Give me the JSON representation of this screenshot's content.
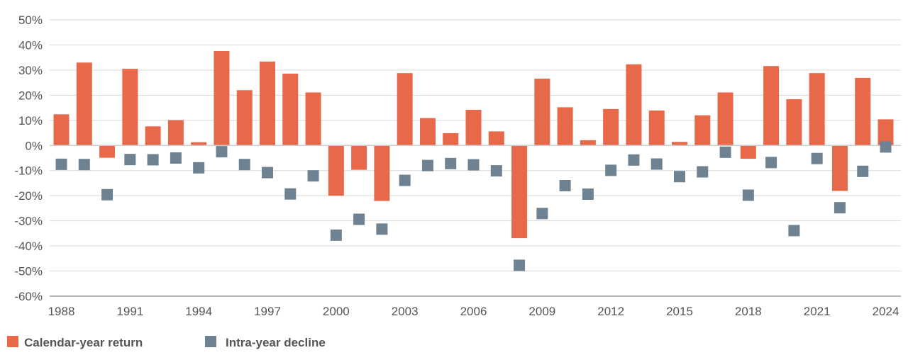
{
  "chart_data": {
    "type": "bar",
    "title": "",
    "xlabel": "",
    "ylabel": "",
    "ylim": [
      -60,
      50
    ],
    "y_ticks": [
      "50%",
      "40%",
      "30%",
      "20%",
      "10%",
      "0%",
      "-10%",
      "-20%",
      "-30%",
      "-40%",
      "-50%",
      "-60%"
    ],
    "x_tick_labels": [
      "1988",
      "1991",
      "1994",
      "1997",
      "2000",
      "2003",
      "2006",
      "2009",
      "2012",
      "2015",
      "2018",
      "2021",
      "2024"
    ],
    "grid": true,
    "legend_position": "bottom-left",
    "years": [
      1988,
      1989,
      1990,
      1991,
      1992,
      1993,
      1994,
      1995,
      1996,
      1997,
      1998,
      1999,
      2000,
      2001,
      2002,
      2003,
      2004,
      2005,
      2006,
      2007,
      2008,
      2009,
      2010,
      2011,
      2012,
      2013,
      2014,
      2015,
      2016,
      2017,
      2018,
      2019,
      2020,
      2021,
      2022,
      2023,
      2024
    ],
    "series": [
      {
        "name": "Calendar-year return",
        "kind": "bar",
        "color": "#E8694A",
        "values": [
          12.4,
          33,
          -4.9,
          30.5,
          7.6,
          10.1,
          1.3,
          37.6,
          22,
          33.4,
          28.6,
          21.1,
          -20,
          -9.7,
          -22.1,
          28.8,
          10.9,
          4.9,
          14.2,
          5.6,
          -36.9,
          26.6,
          15.2,
          2.1,
          14.5,
          32.3,
          13.9,
          1.4,
          12,
          21.1,
          -5.3,
          31.6,
          18.4,
          28.8,
          -18.1,
          26.9,
          10.4
        ]
      },
      {
        "name": "Intra-year decline",
        "kind": "marker",
        "color": "#6F8291",
        "values": [
          -7.5,
          -7.6,
          -19.6,
          -5.6,
          -5.7,
          -5,
          -8.9,
          -2.5,
          -7.6,
          -10.8,
          -19.3,
          -12.1,
          -35.7,
          -29.4,
          -33.3,
          -13.9,
          -8,
          -7.2,
          -7.7,
          -10.1,
          -47.7,
          -27.1,
          -16,
          -19.4,
          -9.9,
          -5.8,
          -7.4,
          -12.4,
          -10.5,
          -2.7,
          -19.8,
          -6.8,
          -33.9,
          -5.2,
          -24.8,
          -10.3,
          -0.6
        ]
      }
    ]
  },
  "legend": {
    "items": [
      {
        "label": "Calendar-year return",
        "color": "#E8694A"
      },
      {
        "label": "Intra-year decline",
        "color": "#6F8291"
      }
    ]
  }
}
